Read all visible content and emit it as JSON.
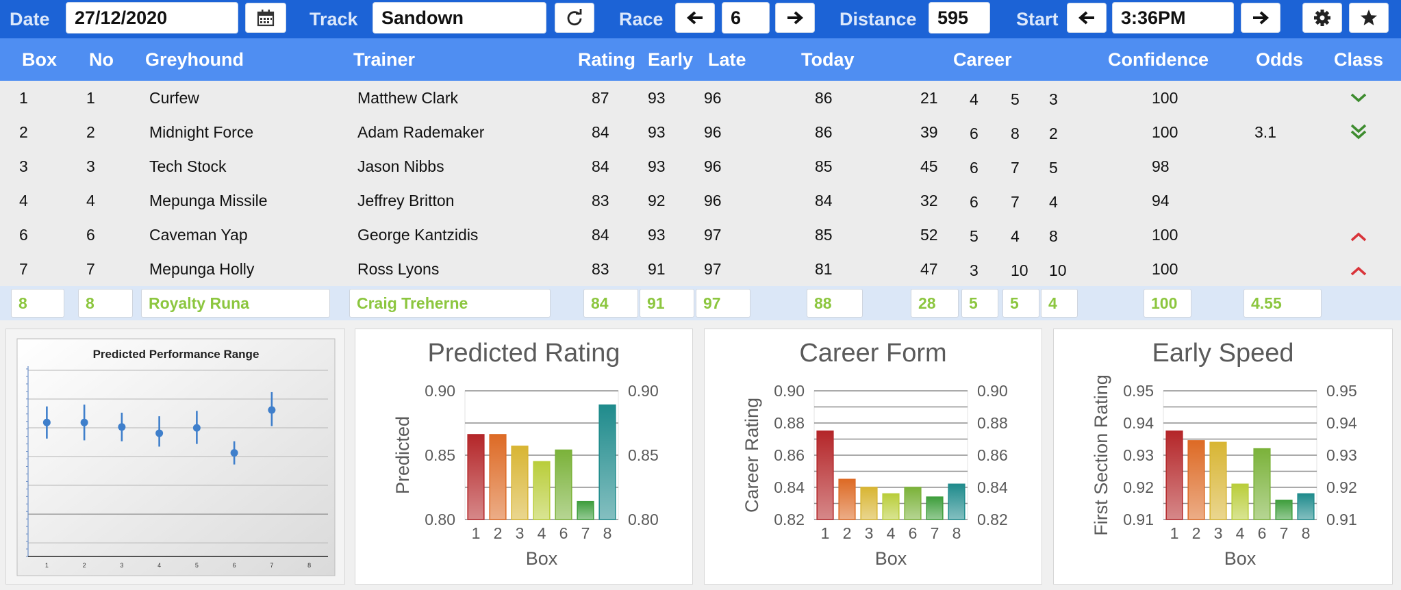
{
  "toolbar": {
    "date_label": "Date",
    "date_value": "27/12/2020",
    "calendar_icon": "calendar-icon",
    "track_label": "Track",
    "track_value": "Sandown",
    "refresh_icon": "refresh-icon",
    "race_label": "Race",
    "race_value": "6",
    "distance_label": "Distance",
    "distance_value": "595",
    "start_label": "Start",
    "start_value": "3:36PM",
    "settings_icon": "gear-icon",
    "favourite_icon": "star-icon"
  },
  "table": {
    "headers": {
      "box": "Box",
      "no": "No",
      "greyhound": "Greyhound",
      "trainer": "Trainer",
      "rating": "Rating",
      "early": "Early",
      "late": "Late",
      "today": "Today",
      "career": "Career",
      "confidence": "Confidence",
      "odds": "Odds",
      "class": "Class"
    },
    "rows": [
      {
        "box": "1",
        "no": "1",
        "greyhound": "Curfew",
        "trainer": "Matthew Clark",
        "rating": "87",
        "early": "93",
        "late": "96",
        "today": "86",
        "c1": "21",
        "c2": "4",
        "c3": "5",
        "c4": "3",
        "confidence": "100",
        "odds": "",
        "class_icon": "chevron-down"
      },
      {
        "box": "2",
        "no": "2",
        "greyhound": "Midnight Force",
        "trainer": "Adam Rademaker",
        "rating": "84",
        "early": "93",
        "late": "96",
        "today": "86",
        "c1": "39",
        "c2": "6",
        "c3": "8",
        "c4": "2",
        "confidence": "100",
        "odds": "3.1",
        "class_icon": "double-chevron-down"
      },
      {
        "box": "3",
        "no": "3",
        "greyhound": "Tech Stock",
        "trainer": "Jason Nibbs",
        "rating": "84",
        "early": "93",
        "late": "96",
        "today": "85",
        "c1": "45",
        "c2": "6",
        "c3": "7",
        "c4": "5",
        "confidence": "98",
        "odds": "",
        "class_icon": ""
      },
      {
        "box": "4",
        "no": "4",
        "greyhound": "Mepunga Missile",
        "trainer": "Jeffrey Britton",
        "rating": "83",
        "early": "92",
        "late": "96",
        "today": "84",
        "c1": "32",
        "c2": "6",
        "c3": "7",
        "c4": "4",
        "confidence": "94",
        "odds": "",
        "class_icon": ""
      },
      {
        "box": "6",
        "no": "6",
        "greyhound": "Caveman Yap",
        "trainer": "George Kantzidis",
        "rating": "84",
        "early": "93",
        "late": "97",
        "today": "85",
        "c1": "52",
        "c2": "5",
        "c3": "4",
        "c4": "8",
        "confidence": "100",
        "odds": "",
        "class_icon": "chevron-up"
      },
      {
        "box": "7",
        "no": "7",
        "greyhound": "Mepunga Holly",
        "trainer": "Ross Lyons",
        "rating": "83",
        "early": "91",
        "late": "97",
        "today": "81",
        "c1": "47",
        "c2": "3",
        "c3": "10",
        "c4": "10",
        "confidence": "100",
        "odds": "",
        "class_icon": "chevron-up"
      }
    ],
    "input_row": {
      "box": "8",
      "no": "8",
      "greyhound": "Royalty Runa",
      "trainer": "Craig Treherne",
      "rating": "84",
      "early": "91",
      "late": "97",
      "today": "88",
      "c1": "28",
      "c2": "5",
      "c3": "5",
      "c4": "4",
      "confidence": "100",
      "odds": "4.55"
    }
  },
  "colors": {
    "toolbar": "#1c63d6",
    "header": "#4f8ef2",
    "class_down": "#3e8c2f",
    "class_up": "#d9343a",
    "input_text": "#8cc63f",
    "bar_colors": [
      "#b42629",
      "#dd6a25",
      "#d8b533",
      "#b9cd3a",
      "#7bb23a",
      "#3f9e3d",
      "#1f8b8c"
    ]
  },
  "chart_data": [
    {
      "type": "scatter",
      "title": "Predicted Performance Range",
      "categories": [
        "1",
        "2",
        "3",
        "4",
        "5",
        "6",
        "7",
        "8"
      ],
      "series": [
        {
          "values": [
            0.87,
            0.87,
            0.865,
            0.858,
            0.864,
            0.836,
            0.884
          ],
          "low": [
            0.852,
            0.85,
            0.849,
            0.843,
            0.846,
            0.823,
            0.866
          ],
          "high": [
            0.888,
            0.89,
            0.881,
            0.877,
            0.883,
            0.849,
            0.904
          ]
        }
      ],
      "ylim": [
        0.72,
        0.93
      ],
      "grid": true
    },
    {
      "type": "bar",
      "title": "Predicted Rating",
      "xlabel": "Box",
      "ylabel": "Predicted",
      "categories": [
        "1",
        "2",
        "3",
        "4",
        "6",
        "7",
        "8"
      ],
      "values": [
        0.866,
        0.866,
        0.857,
        0.845,
        0.854,
        0.814,
        0.889
      ],
      "ylim": [
        0.8,
        0.9
      ],
      "yticks": [
        "0.80",
        "0.85",
        "0.90"
      ],
      "grid": true
    },
    {
      "type": "bar",
      "title": "Career Form",
      "xlabel": "Box",
      "ylabel": "Career Rating",
      "categories": [
        "1",
        "2",
        "3",
        "4",
        "6",
        "7",
        "8"
      ],
      "values": [
        0.875,
        0.845,
        0.84,
        0.836,
        0.84,
        0.834,
        0.842
      ],
      "ylim": [
        0.82,
        0.9
      ],
      "yticks": [
        "0.82",
        "0.84",
        "0.86",
        "0.88",
        "0.90"
      ],
      "grid": true
    },
    {
      "type": "bar",
      "title": "Early Speed",
      "xlabel": "Box",
      "ylabel": "First Section Rating",
      "categories": [
        "1",
        "2",
        "3",
        "4",
        "6",
        "7",
        "8"
      ],
      "values": [
        0.9375,
        0.9345,
        0.934,
        0.921,
        0.932,
        0.916,
        0.918
      ],
      "ylim": [
        0.91,
        0.95
      ],
      "yticks": [
        "0.91",
        "0.92",
        "0.93",
        "0.94",
        "0.95"
      ],
      "grid": true
    }
  ]
}
